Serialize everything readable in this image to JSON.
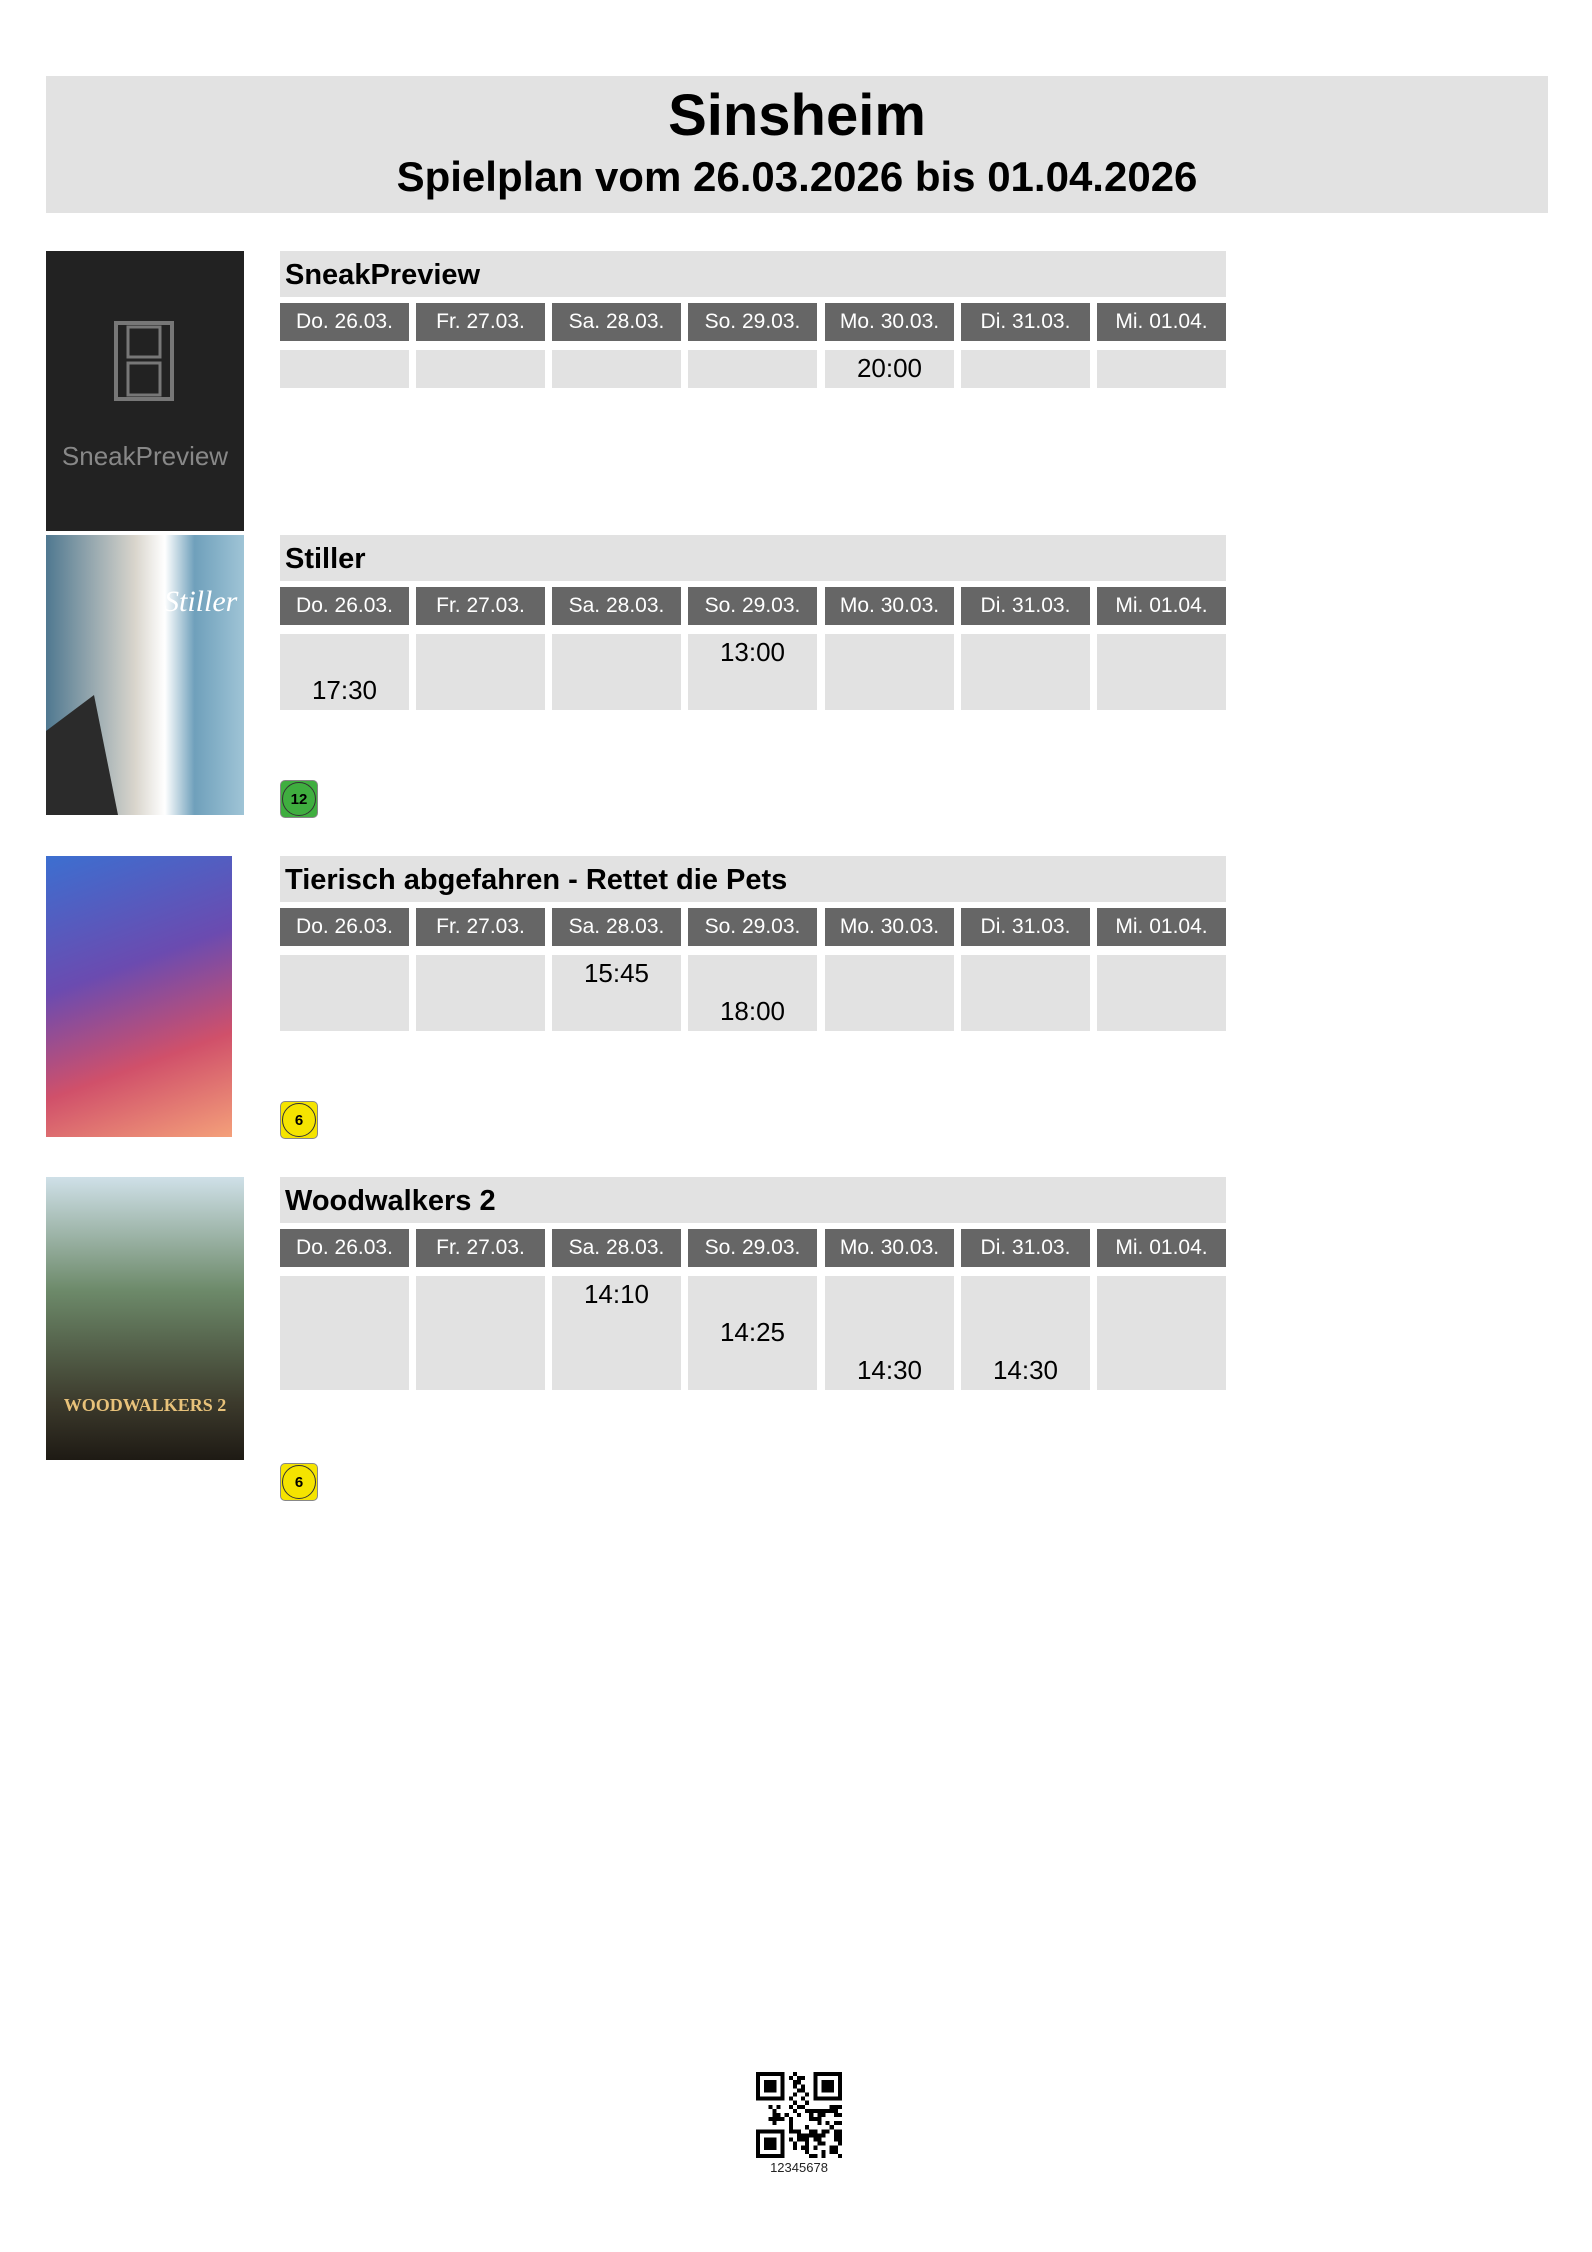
{
  "header": {
    "title": "Sinsheim",
    "subtitle": "Spielplan vom 26.03.2026 bis 01.04.2026"
  },
  "days": [
    "Do. 26.03.",
    "Fr. 27.03.",
    "Sa. 28.03.",
    "So. 29.03.",
    "Mo. 30.03.",
    "Di. 31.03.",
    "Mi. 01.04."
  ],
  "films": [
    {
      "title": "SneakPreview",
      "poster_text": "SneakPreview",
      "poster_icon": "film-strip-icon",
      "fsk": null,
      "times": [
        [],
        [],
        [],
        [],
        [
          "20:00"
        ],
        [],
        []
      ]
    },
    {
      "title": "Stiller",
      "poster_text": "Stiller",
      "fsk": "12",
      "fsk_color": "#3fae3f",
      "times": [
        [
          "17:30"
        ],
        [],
        [],
        [
          "13:00"
        ],
        [],
        [],
        []
      ]
    },
    {
      "title": "Tierisch abgefahren - Rettet die Pets",
      "poster_text": "",
      "fsk": "6",
      "fsk_color": "#f5e400",
      "times": [
        [],
        [],
        [
          "15:45"
        ],
        [
          "18:00"
        ],
        [],
        [],
        []
      ]
    },
    {
      "title": "Woodwalkers 2",
      "poster_text": "WOODWALKERS 2",
      "fsk": "6",
      "fsk_color": "#f5e400",
      "times": [
        [],
        [],
        [
          "14:10"
        ],
        [
          "14:25"
        ],
        [
          "14:30"
        ],
        [
          "14:30"
        ],
        []
      ]
    }
  ],
  "footer": {
    "code": "12345678"
  }
}
